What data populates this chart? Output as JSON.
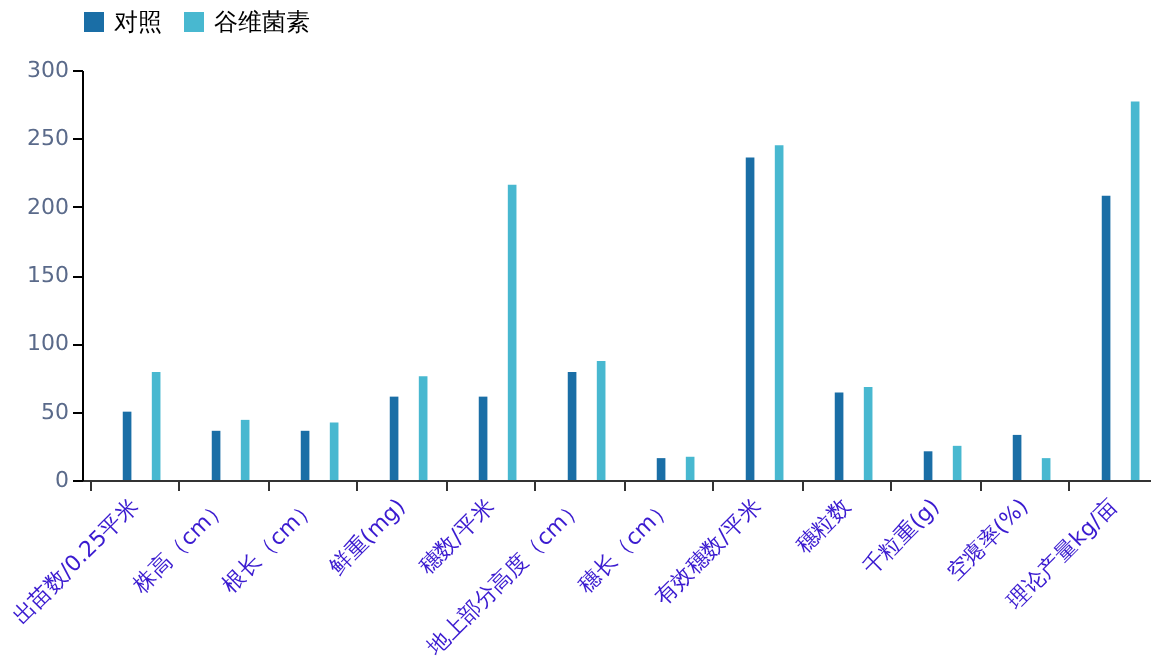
{
  "chart_data": {
    "type": "bar",
    "categories": [
      "出苗数/0.25平米",
      "株高（cm）",
      "根长（cm）",
      "鲜重(mg)",
      "穗数/平米",
      "地上部分高度（cm）",
      "穗长（cm）",
      "有效穗数/平米",
      "穗粒数",
      "千粒重(g)",
      "空瘪率(%)",
      "理论产量kg/亩"
    ],
    "series": [
      {
        "name": "对照",
        "color": "#1a6ea6",
        "values": [
          50,
          36,
          36,
          61,
          61,
          79,
          16,
          236,
          64,
          21,
          33,
          208
        ]
      },
      {
        "name": "谷维菌素",
        "color": "#48b8d0",
        "values": [
          79,
          44,
          42,
          76,
          216,
          87,
          17,
          245,
          68,
          25,
          16,
          277
        ]
      }
    ],
    "ylim": [
      0,
      300
    ],
    "yticks": [
      0,
      50,
      100,
      150,
      200,
      250,
      300
    ],
    "grid": false,
    "legend": "top"
  }
}
